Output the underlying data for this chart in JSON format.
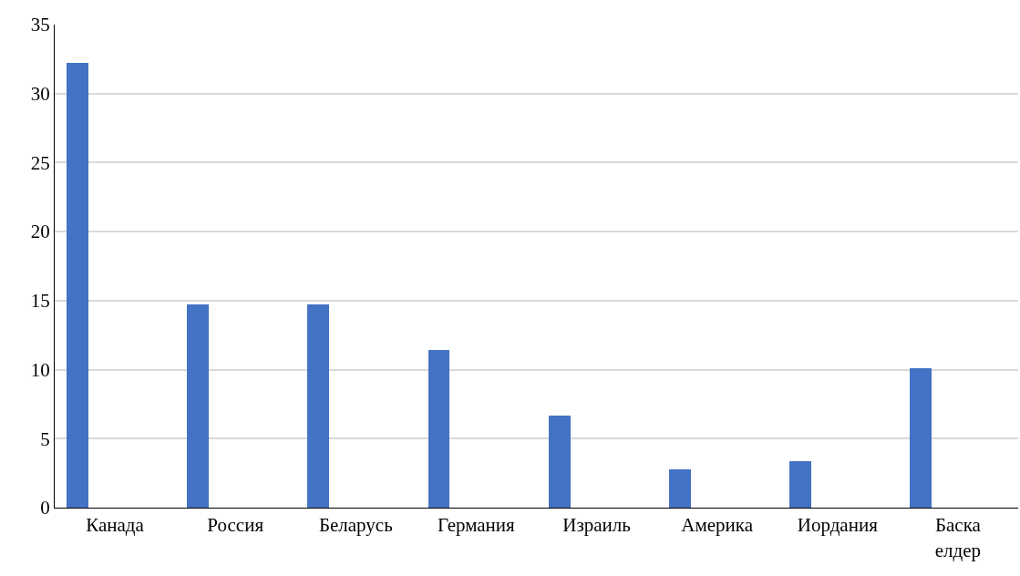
{
  "chart_data": {
    "type": "bar",
    "categories": [
      "Канада",
      "Россия",
      "Беларусь",
      "Германия",
      "Израиль",
      "Америка",
      "Иордания",
      "Баска елдер"
    ],
    "values": [
      32.2,
      14.7,
      14.7,
      11.4,
      6.7,
      2.8,
      3.4,
      10.1
    ],
    "color": "#4472c4",
    "ylim": [
      0,
      35
    ],
    "yticks": [
      0,
      5,
      10,
      15,
      20,
      25,
      30,
      35
    ],
    "grid": "y"
  }
}
